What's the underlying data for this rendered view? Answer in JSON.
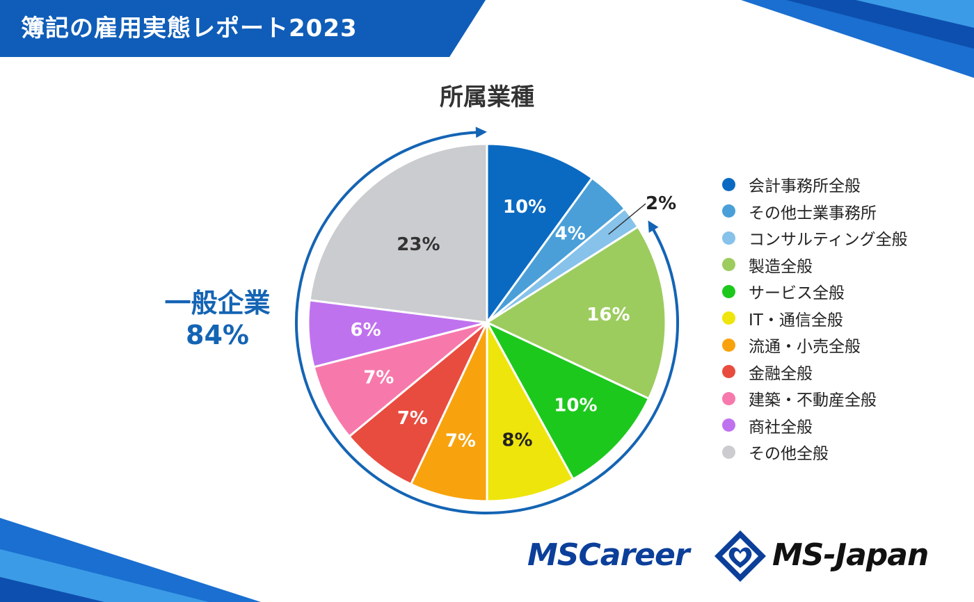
{
  "banner": {
    "title": "簿記の雇用実態レポート2023"
  },
  "chart_data": {
    "type": "pie",
    "title": "所属業種",
    "unit": "%",
    "slices": [
      {
        "label": "会計事務所全般",
        "value": 10,
        "value_label": "10%",
        "color": "#0a6ac2",
        "label_color": "#ffffff"
      },
      {
        "label": "その他士業事務所",
        "value": 4,
        "value_label": "4%",
        "color": "#4a9fd8",
        "label_color": "#ffffff"
      },
      {
        "label": "コンサルティング全般",
        "value": 2,
        "value_label": "2%",
        "color": "#86c2ea",
        "label_color": "#222222"
      },
      {
        "label": "製造全般",
        "value": 16,
        "value_label": "16%",
        "color": "#9ccc5e",
        "label_color": "#ffffff"
      },
      {
        "label": "サービス全般",
        "value": 10,
        "value_label": "10%",
        "color": "#1dc81d",
        "label_color": "#ffffff"
      },
      {
        "label": "IT・通信全般",
        "value": 8,
        "value_label": "8%",
        "color": "#eee50c",
        "label_color": "#222222"
      },
      {
        "label": "流通・小売全般",
        "value": 7,
        "value_label": "7%",
        "color": "#f8a30d",
        "label_color": "#ffffff"
      },
      {
        "label": "金融全般",
        "value": 7,
        "value_label": "7%",
        "color": "#e84c3f",
        "label_color": "#ffffff"
      },
      {
        "label": "建築・不動産全般",
        "value": 7,
        "value_label": "7%",
        "color": "#f779ac",
        "label_color": "#ffffff"
      },
      {
        "label": "商社全般",
        "value": 6,
        "value_label": "6%",
        "color": "#bf72ee",
        "label_color": "#ffffff"
      },
      {
        "label": "その他全般",
        "value": 23,
        "value_label": "23%",
        "color": "#cbcccf",
        "label_color": "#333333"
      }
    ],
    "group": {
      "name": "一般企業",
      "value": 84,
      "value_label": "84%",
      "from_slice": 3,
      "color": "#1464b4"
    },
    "legend_position": "right"
  },
  "logos": {
    "left": "MSCareer",
    "right": "MS-Japan"
  },
  "colors": {
    "brand_blue": "#0b3f9a",
    "accent_blue": "#1464b4",
    "banner_blue": "#0f5db8"
  }
}
